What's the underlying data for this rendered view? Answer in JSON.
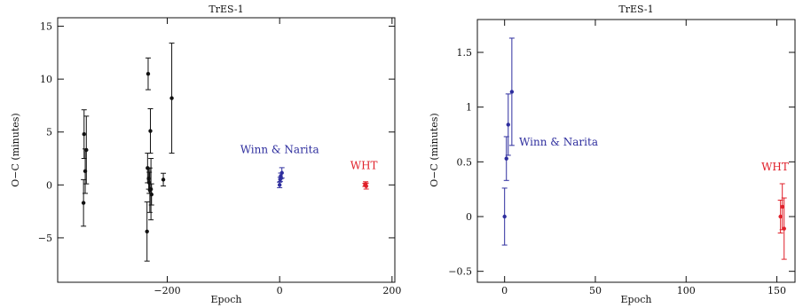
{
  "colors": {
    "black": "#111111",
    "blue": "#2e2e9e",
    "red": "#e0202a"
  },
  "chart_data": [
    {
      "type": "scatter",
      "title": "TrES-1",
      "xlabel": "Epoch",
      "ylabel": "O−C (minutes)",
      "xlim": [
        -395,
        205
      ],
      "ylim": [
        -9.2,
        15.8
      ],
      "xticks": [
        -200,
        0,
        200
      ],
      "xtick_labels": [
        "−200",
        "0",
        "200"
      ],
      "yticks": [
        -5,
        0,
        5,
        10,
        15
      ],
      "ytick_labels": [
        "−5",
        "0",
        "5",
        "10",
        "15"
      ],
      "grid": false,
      "annotations": [
        {
          "text": "Winn & Narita",
          "x": 0,
          "y": 3.0,
          "color": "blue"
        },
        {
          "text": "WHT",
          "x": 150,
          "y": 1.5,
          "color": "red"
        }
      ],
      "series": [
        {
          "color": "black",
          "points": [
            {
              "x": -348,
              "y": 4.8,
              "err": 2.3
            },
            {
              "x": -349,
              "y": -1.7,
              "err": 2.2
            },
            {
              "x": -346,
              "y": 1.3,
              "err": 2.1
            },
            {
              "x": -344,
              "y": 3.3,
              "err": 3.2
            },
            {
              "x": -236,
              "y": -4.4,
              "err": 2.8
            },
            {
              "x": -235,
              "y": 1.6,
              "err": 1.4
            },
            {
              "x": -234,
              "y": 10.5,
              "err": 1.5
            },
            {
              "x": -233,
              "y": 0.6,
              "err": 1.0
            },
            {
              "x": -232,
              "y": 0.2,
              "err": 1.0
            },
            {
              "x": -231,
              "y": -0.5,
              "err": 2.1
            },
            {
              "x": -230,
              "y": 5.1,
              "err": 2.1
            },
            {
              "x": -229,
              "y": -0.4,
              "err": 2.9
            },
            {
              "x": -228,
              "y": -0.9,
              "err": 1.0
            },
            {
              "x": -207,
              "y": 0.5,
              "err": 0.6
            },
            {
              "x": -192,
              "y": 8.2,
              "err": 5.2
            }
          ]
        },
        {
          "color": "blue",
          "points": [
            {
              "x": 0,
              "y": 0.0,
              "err": 0.26
            },
            {
              "x": 1,
              "y": 0.53,
              "err": 0.2
            },
            {
              "x": 2,
              "y": 0.84,
              "err": 0.28
            },
            {
              "x": 4,
              "y": 1.14,
              "err": 0.49
            }
          ]
        },
        {
          "color": "red",
          "points": [
            {
              "x": 152,
              "y": 0.0,
              "err": 0.15
            },
            {
              "x": 153,
              "y": 0.09,
              "err": 0.21
            },
            {
              "x": 154,
              "y": -0.11,
              "err": 0.28
            }
          ]
        }
      ]
    },
    {
      "type": "scatter",
      "title": "TrES-1",
      "xlabel": "Epoch",
      "ylabel": "O−C (minutes)",
      "xlim": [
        -15,
        160
      ],
      "ylim": [
        -0.6,
        1.8
      ],
      "xticks": [
        0,
        50,
        100,
        150
      ],
      "xtick_labels": [
        "0",
        "50",
        "100",
        "150"
      ],
      "yticks": [
        -0.5,
        0,
        0.5,
        1,
        1.5
      ],
      "ytick_labels": [
        "−0.5",
        "0",
        "0.5",
        "1",
        "1.5"
      ],
      "grid": false,
      "annotations": [
        {
          "text": "Winn & Narita",
          "x": 8,
          "y": 0.65,
          "color": "blue"
        },
        {
          "text": "WHT",
          "x": 149,
          "y": 0.42,
          "color": "red"
        }
      ],
      "series": [
        {
          "color": "blue",
          "points": [
            {
              "x": 0,
              "y": 0.0,
              "err": 0.26
            },
            {
              "x": 1,
              "y": 0.53,
              "err": 0.2
            },
            {
              "x": 2,
              "y": 0.84,
              "err": 0.28
            },
            {
              "x": 4,
              "y": 1.14,
              "err": 0.49
            }
          ]
        },
        {
          "color": "red",
          "points": [
            {
              "x": 152,
              "y": 0.0,
              "err": 0.15
            },
            {
              "x": 153,
              "y": 0.09,
              "err": 0.21
            },
            {
              "x": 154,
              "y": -0.11,
              "err": 0.28
            }
          ]
        }
      ]
    }
  ]
}
